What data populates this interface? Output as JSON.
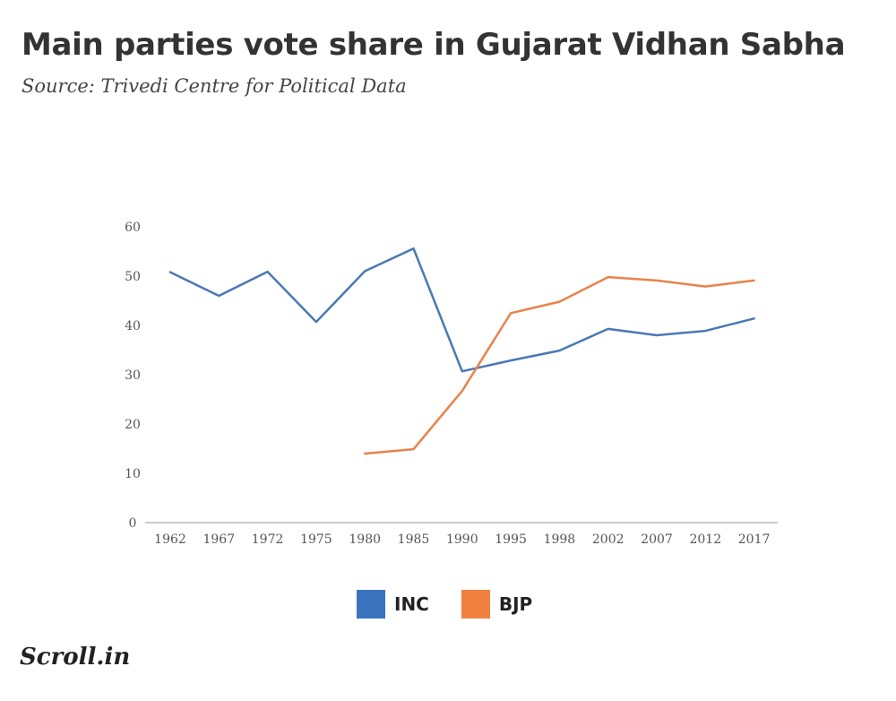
{
  "title": "Main parties vote share in Gujarat Vidhan Sabha",
  "subtitle": "Source: Trivedi Centre for Political Data",
  "brand": "Scroll.in",
  "colors": {
    "INC": "#4a78b6",
    "BJP": "#e8834a",
    "legend_INC": "#3b73bf",
    "legend_BJP": "#f0813f",
    "axis": "#bbbbbb"
  },
  "chart_data": {
    "type": "line",
    "categories": [
      "1962",
      "1967",
      "1972",
      "1975",
      "1980",
      "1985",
      "1990",
      "1995",
      "1998",
      "2002",
      "2007",
      "2012",
      "2017"
    ],
    "ylim": [
      0,
      60
    ],
    "yticks": [
      "0",
      "10",
      "20",
      "30",
      "40",
      "50",
      "60"
    ],
    "grid": false,
    "legend_position": "bottom",
    "series": [
      {
        "name": "INC",
        "values": [
          50.8,
          46.0,
          50.9,
          40.7,
          51.0,
          55.6,
          30.7,
          32.9,
          34.9,
          39.3,
          38.0,
          38.9,
          41.4
        ]
      },
      {
        "name": "BJP",
        "values": [
          null,
          null,
          null,
          null,
          14.0,
          14.9,
          26.7,
          42.5,
          44.8,
          49.8,
          49.1,
          47.9,
          49.1
        ]
      }
    ]
  }
}
